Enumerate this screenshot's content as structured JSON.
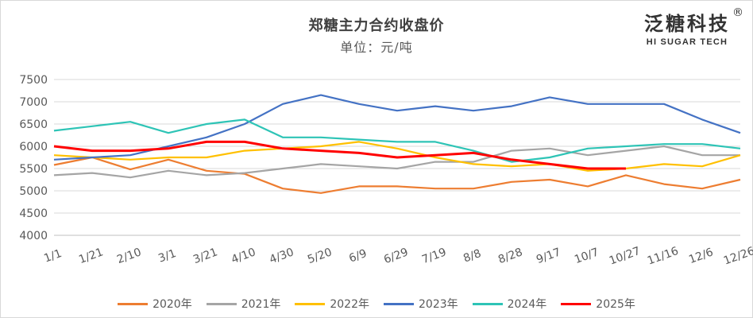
{
  "brand": {
    "name_cn": "泛糖科技",
    "name_en": "HI SUGAR TECH",
    "reg": "®"
  },
  "chart_data": {
    "type": "line",
    "title": "郑糖主力合约收盘价",
    "subtitle": "单位：元/吨",
    "x_tick_labels": [
      "1/1",
      "1/21",
      "2/10",
      "3/1",
      "3/21",
      "4/10",
      "4/30",
      "5/20",
      "6/9",
      "6/29",
      "7/19",
      "8/8",
      "8/28",
      "9/17",
      "10/7",
      "10/27",
      "11/16",
      "12/6",
      "12/26"
    ],
    "y_ticks": [
      4000,
      4500,
      5000,
      5500,
      6000,
      6500,
      7000,
      7500
    ],
    "ylim": [
      4000,
      7500
    ],
    "grid": true,
    "legend_position": "bottom",
    "series": [
      {
        "name": "2020年",
        "color": "#ed7d31",
        "x": [
          "1/1",
          "1/21",
          "2/10",
          "3/1",
          "3/21",
          "4/10",
          "4/30",
          "5/20",
          "6/9",
          "6/29",
          "7/19",
          "8/8",
          "8/28",
          "9/17",
          "10/7",
          "10/27",
          "11/16",
          "12/6",
          "12/26"
        ],
        "values": [
          5580,
          5750,
          5480,
          5700,
          5450,
          5380,
          5050,
          4950,
          5100,
          5100,
          5050,
          5050,
          5200,
          5250,
          5100,
          5350,
          5150,
          5050,
          5250
        ]
      },
      {
        "name": "2021年",
        "color": "#a5a5a5",
        "x": [
          "1/1",
          "1/21",
          "2/10",
          "3/1",
          "3/21",
          "4/10",
          "4/30",
          "5/20",
          "6/9",
          "6/29",
          "7/19",
          "8/8",
          "8/28",
          "9/17",
          "10/7",
          "10/27",
          "11/16",
          "12/6",
          "12/26"
        ],
        "values": [
          5350,
          5400,
          5300,
          5450,
          5350,
          5400,
          5500,
          5600,
          5550,
          5500,
          5650,
          5650,
          5900,
          5950,
          5800,
          5900,
          6000,
          5800,
          5800
        ]
      },
      {
        "name": "2022年",
        "color": "#ffc000",
        "x": [
          "1/1",
          "1/21",
          "2/10",
          "3/1",
          "3/21",
          "4/10",
          "4/30",
          "5/20",
          "6/9",
          "6/29",
          "7/19",
          "8/8",
          "8/28",
          "9/17",
          "10/7",
          "10/27",
          "11/16",
          "12/6",
          "12/26"
        ],
        "values": [
          5800,
          5750,
          5700,
          5750,
          5750,
          5900,
          5950,
          6000,
          6100,
          5950,
          5750,
          5600,
          5550,
          5600,
          5450,
          5500,
          5600,
          5550,
          5800
        ]
      },
      {
        "name": "2023年",
        "color": "#4472c4",
        "x": [
          "1/1",
          "1/21",
          "2/10",
          "3/1",
          "3/21",
          "4/10",
          "4/30",
          "5/20",
          "6/9",
          "6/29",
          "7/19",
          "8/8",
          "8/28",
          "9/17",
          "10/7",
          "10/27",
          "11/16",
          "12/6",
          "12/26"
        ],
        "values": [
          5700,
          5750,
          5800,
          6000,
          6200,
          6500,
          6950,
          7150,
          6950,
          6800,
          6900,
          6800,
          6900,
          7100,
          6950,
          6950,
          6950,
          6600,
          6300
        ]
      },
      {
        "name": "2024年",
        "color": "#2ec4b6",
        "x": [
          "1/1",
          "1/21",
          "2/10",
          "3/1",
          "3/21",
          "4/10",
          "4/30",
          "5/20",
          "6/9",
          "6/29",
          "7/19",
          "8/8",
          "8/28",
          "9/17",
          "10/7",
          "10/27",
          "11/16",
          "12/6",
          "12/26"
        ],
        "values": [
          6350,
          6450,
          6550,
          6300,
          6500,
          6600,
          6200,
          6200,
          6150,
          6100,
          6100,
          5900,
          5650,
          5750,
          5950,
          6000,
          6050,
          6050,
          5950
        ]
      },
      {
        "name": "2025年",
        "color": "#ff0000",
        "x": [
          "1/1",
          "1/21",
          "2/10",
          "3/1",
          "3/21",
          "4/10",
          "4/30",
          "5/20",
          "6/9",
          "6/29",
          "7/19",
          "8/8",
          "8/28",
          "9/17",
          "10/7",
          "10/27"
        ],
        "values": [
          6000,
          5900,
          5900,
          5950,
          6100,
          6100,
          5950,
          5900,
          5850,
          5750,
          5800,
          5850,
          5700,
          5600,
          5500,
          5500
        ]
      }
    ]
  }
}
